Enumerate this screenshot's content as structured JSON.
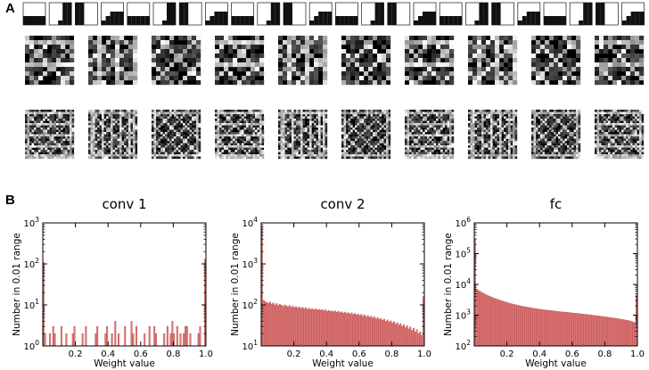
{
  "panels": {
    "a_label": "A",
    "b_label": "B"
  },
  "colors": {
    "bar_fill": "#e07b7b",
    "bar_edge": "#b94545",
    "axis": "#000000",
    "filter_bg": "#000000",
    "filter_fg": "#ffffff"
  },
  "filters": {
    "conv1_count": 24,
    "conv2_count": 10,
    "fc_count": 10
  },
  "chart_data": [
    {
      "type": "bar",
      "title": "conv 1",
      "xlabel": "Weight value",
      "ylabel": "Number in 0.01 range",
      "yscale": "log",
      "ylim": [
        1,
        1000
      ],
      "xlim": [
        0,
        1
      ],
      "xticks": [
        "0.2",
        "0.4",
        "0.6",
        "0.8",
        "1.0"
      ],
      "yticks": [
        "10^0",
        "10^1",
        "10^2",
        "10^3"
      ],
      "x": [
        0.005,
        0.015,
        0.025,
        0.035,
        0.045,
        0.055,
        0.065,
        0.075,
        0.085,
        0.095,
        0.105,
        0.115,
        0.125,
        0.135,
        0.145,
        0.155,
        0.165,
        0.175,
        0.185,
        0.195,
        0.205,
        0.215,
        0.225,
        0.235,
        0.245,
        0.255,
        0.265,
        0.275,
        0.285,
        0.295,
        0.305,
        0.315,
        0.325,
        0.335,
        0.345,
        0.355,
        0.365,
        0.375,
        0.385,
        0.395,
        0.405,
        0.415,
        0.425,
        0.435,
        0.445,
        0.455,
        0.465,
        0.475,
        0.485,
        0.495,
        0.505,
        0.515,
        0.525,
        0.535,
        0.545,
        0.555,
        0.565,
        0.575,
        0.585,
        0.595,
        0.605,
        0.615,
        0.625,
        0.635,
        0.645,
        0.655,
        0.665,
        0.675,
        0.685,
        0.695,
        0.705,
        0.715,
        0.725,
        0.735,
        0.745,
        0.755,
        0.765,
        0.775,
        0.785,
        0.795,
        0.805,
        0.815,
        0.825,
        0.835,
        0.845,
        0.855,
        0.865,
        0.875,
        0.885,
        0.895,
        0.905,
        0.915,
        0.925,
        0.935,
        0.945,
        0.955,
        0.965,
        0.975,
        0.985,
        0.995
      ],
      "values": [
        110,
        2,
        1,
        1,
        2,
        1,
        3,
        2,
        1,
        1,
        1,
        3,
        1,
        1,
        2,
        1,
        1,
        1,
        2,
        3,
        1,
        1,
        1,
        1,
        2,
        1,
        3,
        1,
        1,
        1,
        1,
        1,
        2,
        3,
        1,
        1,
        1,
        1,
        2,
        3,
        1,
        1,
        2,
        1,
        4,
        1,
        2,
        1,
        1,
        1,
        3,
        1,
        1,
        1,
        4,
        2,
        1,
        3,
        1,
        1,
        1,
        1,
        2,
        1,
        1,
        3,
        1,
        1,
        3,
        2,
        1,
        1,
        1,
        1,
        2,
        1,
        3,
        1,
        2,
        4,
        2,
        1,
        3,
        1,
        2,
        1,
        2,
        3,
        3,
        1,
        2,
        1,
        1,
        1,
        1,
        2,
        3,
        1,
        1,
        130
      ]
    },
    {
      "type": "bar",
      "title": "conv 2",
      "xlabel": "Weight value",
      "ylabel": "",
      "yscale": "log",
      "ylim": [
        10,
        10000
      ],
      "xlim": [
        0,
        1
      ],
      "xticks": [
        "0.2",
        "0.4",
        "0.6",
        "0.8",
        "1.0"
      ],
      "yticks": [
        "10^1",
        "10^2",
        "10^3",
        "10^4"
      ],
      "x": [
        0.005,
        0.015,
        0.025,
        0.035,
        0.045,
        0.055,
        0.065,
        0.075,
        0.085,
        0.095,
        0.105,
        0.115,
        0.125,
        0.135,
        0.145,
        0.155,
        0.165,
        0.175,
        0.185,
        0.195,
        0.205,
        0.215,
        0.225,
        0.235,
        0.245,
        0.255,
        0.265,
        0.275,
        0.285,
        0.295,
        0.305,
        0.315,
        0.325,
        0.335,
        0.345,
        0.355,
        0.365,
        0.375,
        0.385,
        0.395,
        0.405,
        0.415,
        0.425,
        0.435,
        0.445,
        0.455,
        0.465,
        0.475,
        0.485,
        0.495,
        0.505,
        0.515,
        0.525,
        0.535,
        0.545,
        0.555,
        0.565,
        0.575,
        0.585,
        0.595,
        0.605,
        0.615,
        0.625,
        0.635,
        0.645,
        0.655,
        0.665,
        0.675,
        0.685,
        0.695,
        0.705,
        0.715,
        0.725,
        0.735,
        0.745,
        0.755,
        0.765,
        0.775,
        0.785,
        0.795,
        0.805,
        0.815,
        0.825,
        0.835,
        0.845,
        0.855,
        0.865,
        0.875,
        0.885,
        0.895,
        0.905,
        0.915,
        0.925,
        0.935,
        0.945,
        0.955,
        0.965,
        0.975,
        0.985,
        0.995
      ],
      "values": [
        8000,
        130,
        120,
        115,
        110,
        118,
        105,
        112,
        100,
        108,
        96,
        104,
        98,
        92,
        100,
        95,
        90,
        97,
        88,
        93,
        86,
        91,
        84,
        89,
        82,
        87,
        80,
        85,
        78,
        83,
        77,
        81,
        76,
        80,
        75,
        78,
        74,
        77,
        72,
        76,
        70,
        74,
        69,
        72,
        68,
        71,
        66,
        70,
        65,
        68,
        63,
        67,
        62,
        65,
        60,
        64,
        58,
        62,
        57,
        60,
        55,
        59,
        53,
        57,
        51,
        55,
        50,
        53,
        48,
        51,
        46,
        49,
        44,
        47,
        42,
        45,
        40,
        43,
        38,
        41,
        36,
        39,
        34,
        37,
        32,
        35,
        30,
        33,
        28,
        31,
        26,
        29,
        24,
        27,
        22,
        25,
        20,
        22,
        18,
        160
      ]
    },
    {
      "type": "bar",
      "title": "fc",
      "xlabel": "Weight value",
      "ylabel": "",
      "yscale": "log",
      "ylim": [
        100,
        1000000
      ],
      "xlim": [
        0,
        1
      ],
      "xticks": [
        "0.2",
        "0.4",
        "0.6",
        "0.8",
        "1.0"
      ],
      "yticks": [
        "10^2",
        "10^3",
        "10^4",
        "10^5",
        "10^6"
      ],
      "x": [
        0.005,
        0.015,
        0.025,
        0.035,
        0.045,
        0.055,
        0.065,
        0.075,
        0.085,
        0.095,
        0.105,
        0.115,
        0.125,
        0.135,
        0.145,
        0.155,
        0.165,
        0.175,
        0.185,
        0.195,
        0.205,
        0.215,
        0.225,
        0.235,
        0.245,
        0.255,
        0.265,
        0.275,
        0.285,
        0.295,
        0.305,
        0.315,
        0.325,
        0.335,
        0.345,
        0.355,
        0.365,
        0.375,
        0.385,
        0.395,
        0.405,
        0.415,
        0.425,
        0.435,
        0.445,
        0.455,
        0.465,
        0.475,
        0.485,
        0.495,
        0.505,
        0.515,
        0.525,
        0.535,
        0.545,
        0.555,
        0.565,
        0.575,
        0.585,
        0.595,
        0.605,
        0.615,
        0.625,
        0.635,
        0.645,
        0.655,
        0.665,
        0.675,
        0.685,
        0.695,
        0.705,
        0.715,
        0.725,
        0.735,
        0.745,
        0.755,
        0.765,
        0.775,
        0.785,
        0.795,
        0.805,
        0.815,
        0.825,
        0.835,
        0.845,
        0.855,
        0.865,
        0.875,
        0.885,
        0.895,
        0.905,
        0.915,
        0.925,
        0.935,
        0.945,
        0.955,
        0.965,
        0.975,
        0.985,
        0.995
      ],
      "values": [
        300000,
        7000,
        6500,
        6000,
        5600,
        5200,
        4900,
        4600,
        4350,
        4100,
        3900,
        3700,
        3550,
        3400,
        3250,
        3100,
        2980,
        2860,
        2750,
        2650,
        2560,
        2470,
        2390,
        2310,
        2240,
        2170,
        2110,
        2050,
        2000,
        1950,
        1900,
        1860,
        1820,
        1780,
        1740,
        1700,
        1670,
        1640,
        1610,
        1580,
        1550,
        1520,
        1500,
        1480,
        1460,
        1440,
        1420,
        1400,
        1380,
        1360,
        1340,
        1320,
        1300,
        1285,
        1270,
        1255,
        1240,
        1225,
        1210,
        1195,
        1180,
        1165,
        1150,
        1135,
        1120,
        1105,
        1090,
        1075,
        1060,
        1045,
        1030,
        1015,
        1000,
        985,
        970,
        955,
        940,
        925,
        910,
        895,
        880,
        865,
        850,
        835,
        820,
        805,
        790,
        775,
        760,
        745,
        730,
        715,
        700,
        685,
        670,
        650,
        630,
        600,
        560,
        4500
      ]
    }
  ]
}
